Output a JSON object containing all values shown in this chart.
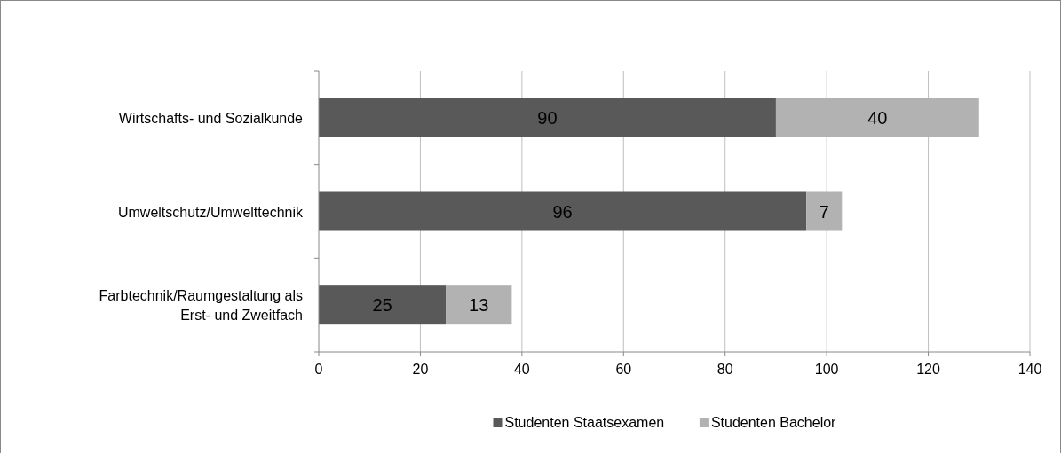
{
  "chart_data": {
    "type": "bar",
    "orientation": "horizontal",
    "stacked": true,
    "categories": [
      "Wirtschafts- und Sozialkunde",
      "Umweltschutz/Umwelttechnik",
      "Farbtechnik/Raumgestaltung als Erst- und Zweitfach"
    ],
    "series": [
      {
        "name": "Studenten Staatsexamen",
        "color": "#595959",
        "values": [
          90,
          96,
          25
        ]
      },
      {
        "name": "Studenten Bachelor",
        "color": "#b2b2b2",
        "values": [
          40,
          7,
          13
        ]
      }
    ],
    "xlim": [
      0,
      140
    ],
    "xticks": [
      0,
      20,
      40,
      60,
      80,
      100,
      120,
      140
    ],
    "grid": "x",
    "legend": "bottom",
    "data_labels": true
  }
}
